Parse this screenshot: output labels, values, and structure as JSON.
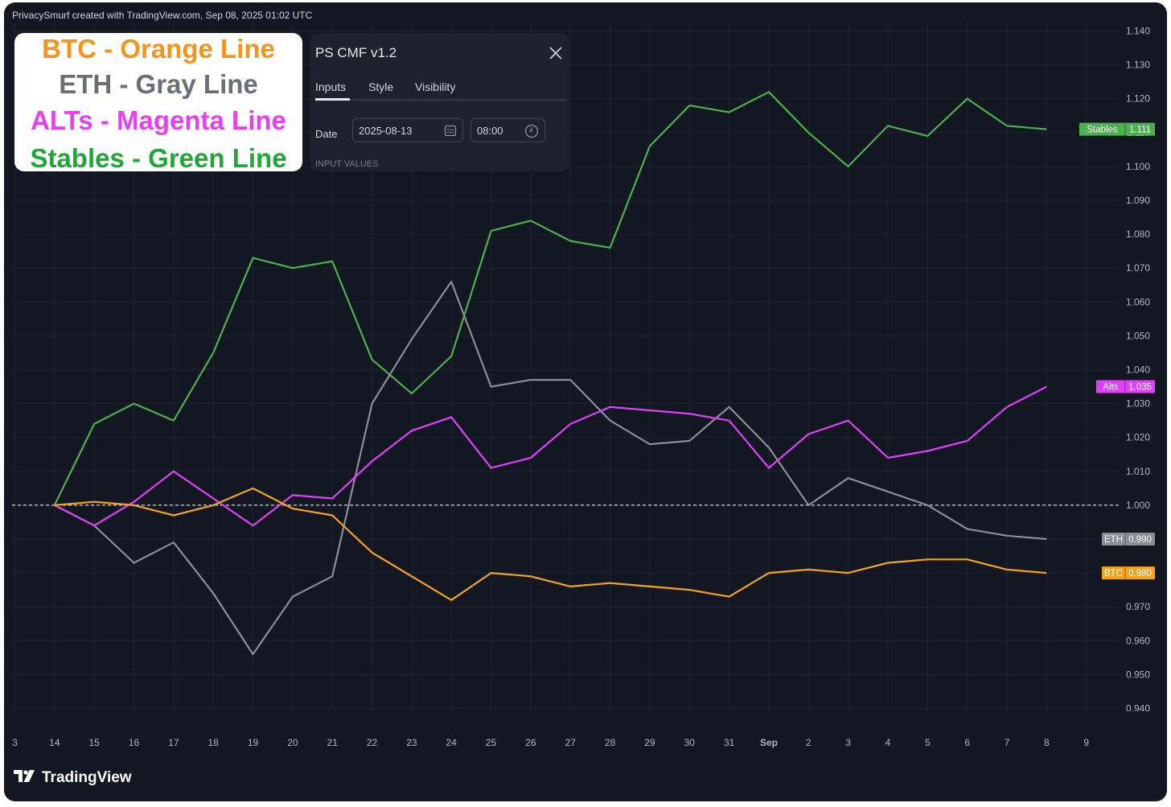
{
  "credit": "PrivacySmurf created with TradingView.com, Sep 08, 2025 01:02 UTC",
  "brand": "TradingView",
  "legend": [
    {
      "text": "BTC - Orange Line",
      "color": "#f7931a"
    },
    {
      "text": "ETH - Gray Line",
      "color": "#6b6e76"
    },
    {
      "text": "ALTs - Magenta Line",
      "color": "#e63ff0"
    },
    {
      "text": "Stables - Green Line",
      "color": "#1fa838"
    }
  ],
  "dialog": {
    "title": "PS CMF v1.2",
    "tabs": [
      "Inputs",
      "Style",
      "Visibility"
    ],
    "date_label": "Date",
    "date_value": "2025-08-13",
    "time_value": "08:00",
    "section_label": "INPUT VALUES"
  },
  "chart_data": {
    "type": "line",
    "xlabel": "",
    "ylabel": "",
    "ylim": [
      0.94,
      1.14
    ],
    "y_ticks": [
      "1.140",
      "1.130",
      "1.120",
      "1.110",
      "1.100",
      "1.090",
      "1.080",
      "1.070",
      "1.060",
      "1.050",
      "1.040",
      "1.030",
      "1.020",
      "1.010",
      "1.000",
      "0.990",
      "0.980",
      "0.970",
      "0.960",
      "0.950",
      "0.940"
    ],
    "x_ticks": [
      "3",
      "14",
      "15",
      "16",
      "17",
      "18",
      "19",
      "20",
      "21",
      "22",
      "23",
      "24",
      "25",
      "26",
      "27",
      "28",
      "29",
      "30",
      "31",
      "Sep",
      "2",
      "3",
      "4",
      "5",
      "6",
      "7",
      "8",
      "9"
    ],
    "baseline": 1.0,
    "series": [
      {
        "name": "Stables",
        "color": "#4caf50",
        "label": "Stables",
        "last": "1.111",
        "values": [
          1.0,
          1.024,
          1.03,
          1.025,
          1.045,
          1.073,
          1.07,
          1.072,
          1.043,
          1.033,
          1.044,
          1.081,
          1.084,
          1.078,
          1.076,
          1.106,
          1.118,
          1.116,
          1.122,
          1.11,
          1.1,
          1.112,
          1.109,
          1.12,
          1.112,
          1.111
        ]
      },
      {
        "name": "ETH",
        "color": "#8b8e97",
        "label": "ETH",
        "last": "0.990",
        "values": [
          1.0,
          0.994,
          0.983,
          0.989,
          0.974,
          0.956,
          0.973,
          0.979,
          1.03,
          1.049,
          1.066,
          1.035,
          1.037,
          1.037,
          1.025,
          1.018,
          1.019,
          1.029,
          1.017,
          1.0,
          1.008,
          1.004,
          1.0,
          0.993,
          0.991,
          0.99
        ]
      },
      {
        "name": "Alts",
        "color": "#e040fb",
        "label": "Alts",
        "last": "1.035",
        "values": [
          1.0,
          0.994,
          1.001,
          1.01,
          1.002,
          0.994,
          1.003,
          1.002,
          1.013,
          1.022,
          1.026,
          1.011,
          1.014,
          1.024,
          1.029,
          1.028,
          1.027,
          1.025,
          1.011,
          1.021,
          1.025,
          1.014,
          1.016,
          1.019,
          1.029,
          1.035
        ]
      },
      {
        "name": "BTC",
        "color": "#f7a21b",
        "label": "BTC",
        "last": "0.980",
        "values": [
          1.0,
          1.001,
          1.0,
          0.997,
          1.0,
          1.005,
          0.999,
          0.997,
          0.986,
          0.979,
          0.972,
          0.98,
          0.979,
          0.976,
          0.977,
          0.976,
          0.975,
          0.973,
          0.98,
          0.981,
          0.98,
          0.983,
          0.984,
          0.984,
          0.981,
          0.98
        ]
      }
    ]
  }
}
